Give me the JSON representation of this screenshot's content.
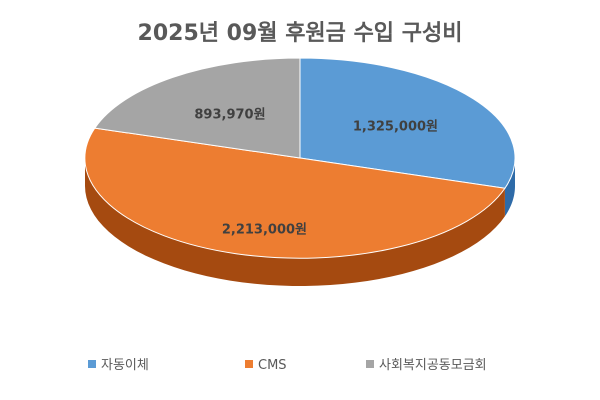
{
  "chart_data": {
    "type": "pie",
    "title": "2025년 09월 후원금 수입 구성비",
    "categories": [
      "자동이체",
      "CMS",
      "사회복지공동모금회"
    ],
    "values": [
      1325000,
      2213000,
      893970
    ],
    "data_labels": [
      "1,325,000원",
      "2,213,000원",
      "893,970원"
    ],
    "colors": [
      "#5B9BD5",
      "#ED7D31",
      "#A5A5A5"
    ],
    "side_colors": [
      "#2E6BA8",
      "#A54A10",
      "#6F6F6F"
    ],
    "style": "3d",
    "legend_position": "bottom"
  }
}
